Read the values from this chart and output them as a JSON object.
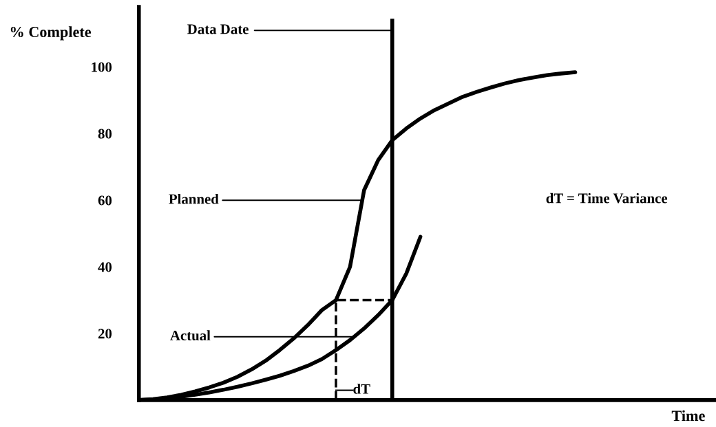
{
  "chart_data": {
    "type": "line",
    "categories": [
      null,
      null,
      null,
      null,
      null,
      null,
      null,
      null,
      null,
      null,
      null,
      null,
      null,
      null,
      null,
      null,
      null,
      null,
      null,
      null,
      null,
      null,
      null,
      null,
      null,
      null,
      null,
      null,
      null,
      null,
      null,
      null,
      null,
      null,
      null,
      null,
      null,
      null,
      null,
      null,
      null,
      null
    ],
    "series": [
      {
        "color": "#000000",
        "values": [
          0,
          0.3,
          0.8,
          1.6,
          2.6,
          3.8,
          5.2,
          7,
          9.2,
          11.8,
          15,
          18.5,
          22.5,
          27,
          30,
          40,
          63,
          72,
          78,
          81.5,
          84.5,
          87,
          89,
          91,
          92.5,
          93.8,
          95,
          96,
          96.8,
          97.5,
          98,
          98.4,
          null,
          null,
          null,
          null,
          null,
          null,
          null,
          null,
          null,
          null
        ]
      },
      {
        "color": "#000000",
        "values": [
          0,
          0.2,
          0.5,
          1,
          1.6,
          2.3,
          3.1,
          4,
          5,
          6.1,
          7.3,
          8.7,
          10.3,
          12.3,
          15,
          18,
          21.5,
          25.5,
          30,
          38,
          49,
          null,
          null,
          null,
          null,
          null,
          null,
          null,
          null,
          null,
          null,
          null,
          null,
          null,
          null,
          null,
          null,
          null,
          null,
          null,
          null,
          null
        ]
      }
    ],
    "ylabel": "% Complete",
    "xlabel": "Time",
    "ylim": [
      0,
      118
    ],
    "yticks": [
      20,
      40,
      60,
      80,
      100
    ],
    "tick_labels": "y",
    "grid": false,
    "legend": false,
    "marker": "none",
    "line_style": "solid",
    "annotations": [
      "Data Date",
      "Planned",
      "Actual",
      "dT = Time Variance",
      "dT"
    ]
  }
}
